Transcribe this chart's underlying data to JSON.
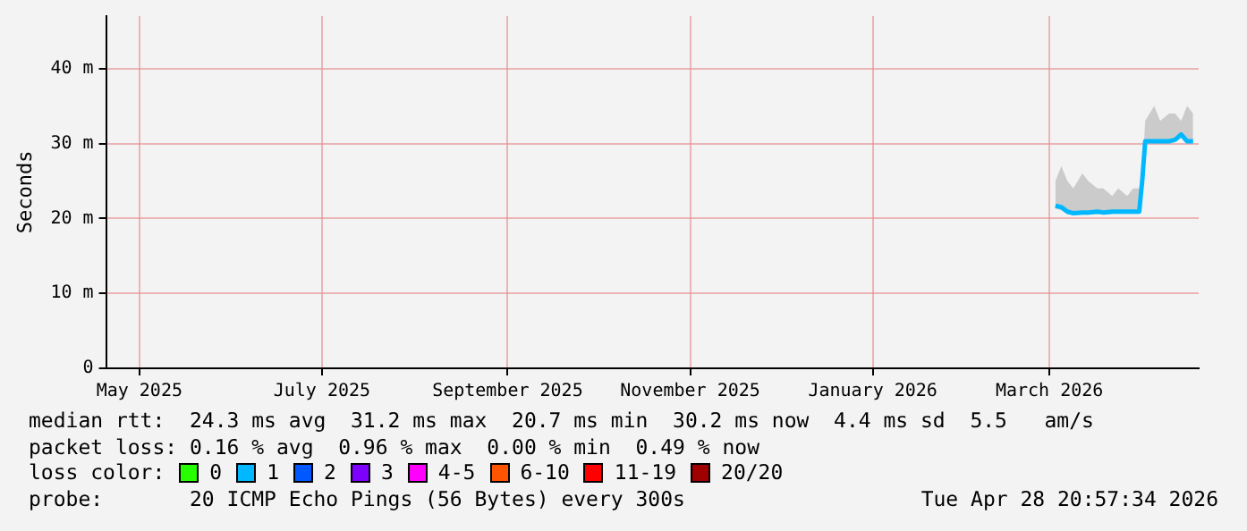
{
  "chart_data": {
    "type": "line",
    "ylabel": "Seconds",
    "x": [
      "2026-03-12",
      "2026-03-14",
      "2026-03-16",
      "2026-03-18",
      "2026-03-21",
      "2026-03-23",
      "2026-03-26",
      "2026-03-28",
      "2026-03-31",
      "2026-04-02",
      "2026-04-05",
      "2026-04-07",
      "2026-04-09",
      "2026-04-10",
      "2026-04-11",
      "2026-04-14",
      "2026-04-16",
      "2026-04-19",
      "2026-04-21",
      "2026-04-23",
      "2026-04-25",
      "2026-04-27"
    ],
    "series": [
      {
        "color": "#00b8ff",
        "values": [
          21.7,
          21.5,
          20.9,
          20.7,
          20.8,
          20.8,
          20.9,
          20.8,
          20.9,
          20.9,
          20.9,
          20.9,
          20.9,
          25.0,
          30.3,
          30.3,
          30.3,
          30.3,
          30.5,
          31.2,
          30.3,
          30.3
        ],
        "lower": [
          21.3,
          21.1,
          20.6,
          20.5,
          20.5,
          20.5,
          20.6,
          20.5,
          20.6,
          20.6,
          20.6,
          20.6,
          20.6,
          24.8,
          30.0,
          30.0,
          30.0,
          30.0,
          30.2,
          30.8,
          30.0,
          30.0
        ],
        "upper": [
          25,
          27,
          25,
          24,
          26,
          25,
          24,
          24,
          23,
          24,
          23,
          24,
          24,
          25.5,
          33,
          35,
          33,
          34,
          34,
          33,
          35,
          34
        ]
      }
    ],
    "xlim": [
      "2025-04-28T20:57",
      "2026-04-28T20:57"
    ],
    "xticks": [
      {
        "value": "2025-05-10",
        "label": "May 2025"
      },
      {
        "value": "2025-07-10",
        "label": "July 2025"
      },
      {
        "value": "2025-09-10",
        "label": "September 2025"
      },
      {
        "value": "2025-11-10",
        "label": "November 2025"
      },
      {
        "value": "2026-01-10",
        "label": "January 2026"
      },
      {
        "value": "2026-03-10",
        "label": "March 2026"
      }
    ],
    "ylim": [
      0,
      47
    ],
    "yticks": [
      0,
      {
        "value": 10,
        "label": "10 m"
      },
      {
        "value": 20,
        "label": "20 m"
      },
      {
        "value": 30,
        "label": "30 m"
      },
      {
        "value": 40,
        "label": "40 m"
      }
    ],
    "grid": true,
    "legend": false,
    "marker": "none",
    "line_style": "solid",
    "annotations": [
      "median rtt:  24.3 ms avg  31.2 ms max  20.7 ms min  30.2 ms now  4.4 ms sd  5.5   am/s",
      "packet loss: 0.16 % avg  0.96 % max  0.00 % min  0.49 % now",
      "loss color:",
      "0",
      "1",
      "2",
      "3",
      "4-5",
      "6-10",
      "11-19",
      "20/20",
      "probe:       20 ICMP Echo Pings (56 Bytes) every 300s",
      "Tue Apr 28 20:57:34 2026"
    ]
  }
}
